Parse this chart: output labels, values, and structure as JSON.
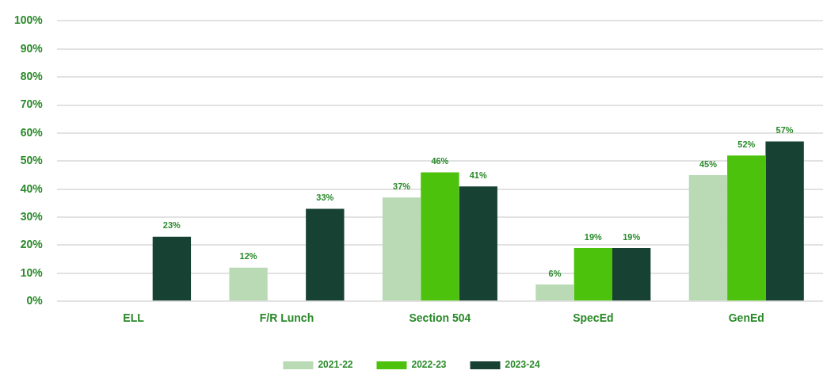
{
  "chart_data": {
    "type": "bar",
    "categories": [
      "ELL",
      "F/R Lunch",
      "Section 504",
      "SpecEd",
      "GenEd"
    ],
    "series": [
      {
        "name": "2021-22",
        "color": "#b9dab5",
        "values": [
          null,
          12,
          37,
          6,
          45
        ],
        "value_labels": [
          null,
          "12%",
          "37%",
          "6%",
          "45%"
        ]
      },
      {
        "name": "2022-23",
        "color": "#4cc20c",
        "values": [
          null,
          null,
          46,
          19,
          52
        ],
        "value_labels": [
          null,
          null,
          "46%",
          "19%",
          "52%"
        ]
      },
      {
        "name": "2023-24",
        "color": "#174233",
        "values": [
          23,
          33,
          41,
          19,
          57
        ],
        "value_labels": [
          "23%",
          "33%",
          "41%",
          "19%",
          "57%"
        ]
      }
    ],
    "ylim": [
      0,
      100
    ],
    "yticks": [
      {
        "value": 0,
        "label": "0%"
      },
      {
        "value": 10,
        "label": "10%"
      },
      {
        "value": 20,
        "label": "20%"
      },
      {
        "value": 30,
        "label": "30%"
      },
      {
        "value": 40,
        "label": "40%"
      },
      {
        "value": 50,
        "label": "50%"
      },
      {
        "value": 60,
        "label": "60%"
      },
      {
        "value": 70,
        "label": "70%"
      },
      {
        "value": 80,
        "label": "80%"
      },
      {
        "value": 90,
        "label": "90%"
      },
      {
        "value": 100,
        "label": "100%"
      }
    ],
    "grid": "y",
    "legend": "bottom"
  }
}
